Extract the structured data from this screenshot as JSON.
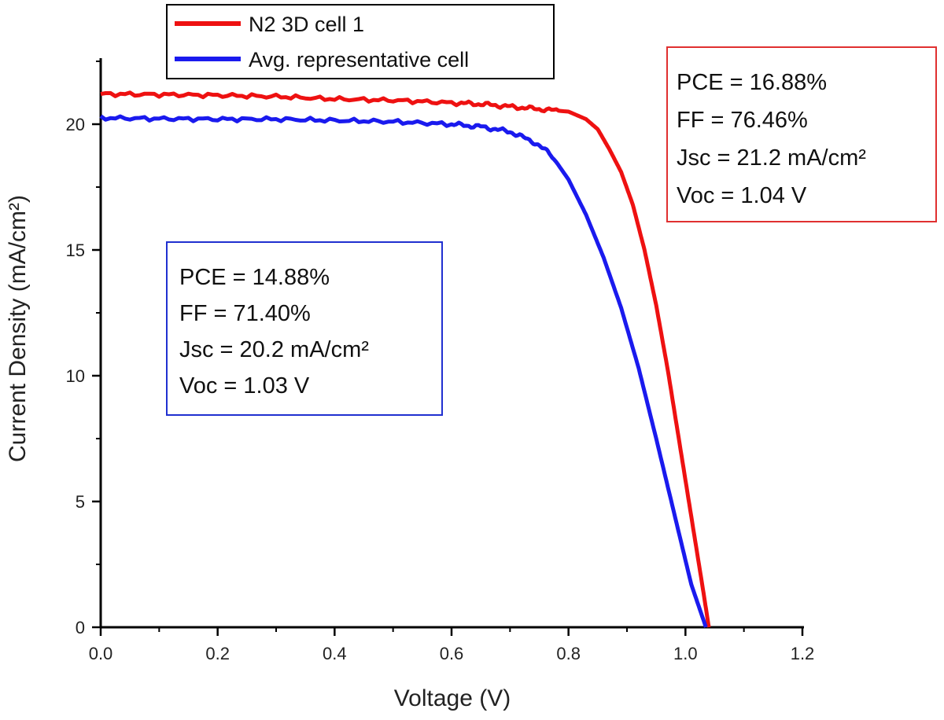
{
  "chart_data": {
    "type": "line",
    "title": "",
    "xlabel": "Voltage (V)",
    "ylabel": "Current Density (mA/cm²)",
    "xlim": [
      0,
      1.2
    ],
    "ylim": [
      0,
      22.5
    ],
    "xticks": [
      0.0,
      0.2,
      0.4,
      0.6,
      0.8,
      1.0,
      1.2
    ],
    "xtick_labels": [
      "0.0",
      "0.2",
      "0.4",
      "0.6",
      "0.8",
      "1.0",
      "1.2"
    ],
    "yticks": [
      0,
      5,
      10,
      15,
      20
    ],
    "ytick_labels": [
      "0",
      "5",
      "10",
      "15",
      "20"
    ],
    "grid": false,
    "legend_position": "top-center",
    "series": [
      {
        "name": "N2 3D cell 1",
        "color": "#ee1111",
        "x": [
          0.0,
          0.1,
          0.2,
          0.3,
          0.4,
          0.5,
          0.6,
          0.65,
          0.7,
          0.75,
          0.8,
          0.83,
          0.85,
          0.87,
          0.89,
          0.91,
          0.93,
          0.95,
          0.97,
          0.99,
          1.01,
          1.03,
          1.04
        ],
        "y": [
          21.2,
          21.18,
          21.15,
          21.1,
          21.0,
          20.95,
          20.85,
          20.8,
          20.7,
          20.6,
          20.5,
          20.2,
          19.8,
          19.0,
          18.1,
          16.8,
          15.0,
          12.8,
          10.2,
          7.3,
          4.4,
          1.5,
          0.0
        ]
      },
      {
        "name": "Avg. representative cell",
        "color": "#1a1aee",
        "x": [
          0.0,
          0.1,
          0.2,
          0.3,
          0.4,
          0.5,
          0.6,
          0.65,
          0.7,
          0.74,
          0.77,
          0.8,
          0.83,
          0.86,
          0.89,
          0.92,
          0.95,
          0.98,
          1.01,
          1.035
        ],
        "y": [
          20.25,
          20.22,
          20.2,
          20.2,
          20.15,
          20.1,
          20.0,
          19.9,
          19.7,
          19.3,
          18.8,
          17.8,
          16.4,
          14.7,
          12.7,
          10.3,
          7.5,
          4.6,
          1.7,
          0.0
        ]
      }
    ],
    "annotations": [
      {
        "series": "N2 3D cell 1",
        "color": "#e03030",
        "lines": [
          "PCE = 16.88%",
          "FF = 76.46%",
          "Jsc = 21.2 mA/cm²",
          "Voc = 1.04 V"
        ]
      },
      {
        "series": "Avg. representative cell",
        "color": "#2030d0",
        "lines": [
          "PCE = 14.88%",
          "FF = 71.40%",
          "Jsc = 20.2 mA/cm²",
          "Voc = 1.03 V"
        ]
      }
    ]
  }
}
